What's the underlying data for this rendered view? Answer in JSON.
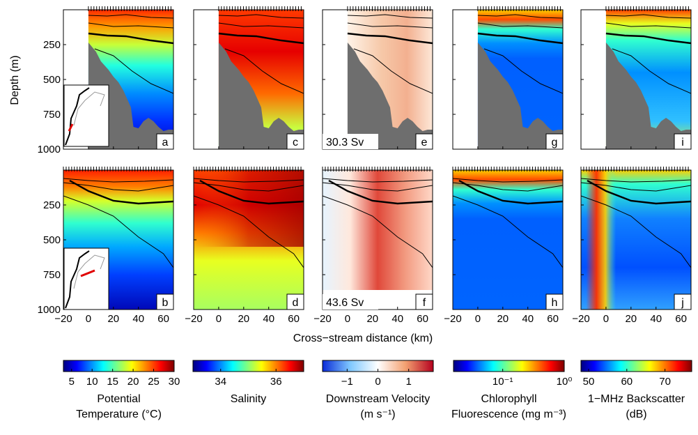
{
  "chart_data": {
    "type": "heatmap",
    "layout_note": "2 rows x 5 columns of depth vs cross-stream distance sections",
    "ylabel": "Depth (m)",
    "xlabel": "Cross−stream distance (km)",
    "xlim": [
      -20,
      68
    ],
    "ylim": [
      1000,
      0
    ],
    "x_ticks": [
      "−20",
      "0",
      "20",
      "40",
      "60"
    ],
    "y_ticks": [
      "250",
      "500",
      "750",
      "1000"
    ],
    "panels": [
      {
        "id": "a",
        "row": 1,
        "variable": "Potential Temperature",
        "inset_map": true
      },
      {
        "id": "c",
        "row": 1,
        "variable": "Salinity"
      },
      {
        "id": "e",
        "row": 1,
        "variable": "Downstream Velocity",
        "transport": "30.3 Sv"
      },
      {
        "id": "g",
        "row": 1,
        "variable": "Chlorophyll Fluorescence"
      },
      {
        "id": "i",
        "row": 1,
        "variable": "1-MHz Backscatter"
      },
      {
        "id": "b",
        "row": 2,
        "variable": "Potential Temperature",
        "inset_map": true
      },
      {
        "id": "d",
        "row": 2,
        "variable": "Salinity"
      },
      {
        "id": "f",
        "row": 2,
        "variable": "Downstream Velocity",
        "transport": "43.6 Sv"
      },
      {
        "id": "h",
        "row": 2,
        "variable": "Chlorophyll Fluorescence"
      },
      {
        "id": "j",
        "row": 2,
        "variable": "1-MHz Backscatter"
      }
    ],
    "colorbars": [
      {
        "label_lines": [
          "Potential",
          "Temperature (°C)"
        ],
        "range": [
          3,
          30
        ],
        "ticks": [
          {
            "v": 5,
            "t": "5"
          },
          {
            "v": 10,
            "t": "10"
          },
          {
            "v": 15,
            "t": "15"
          },
          {
            "v": 20,
            "t": "20"
          },
          {
            "v": 25,
            "t": "25"
          },
          {
            "v": 30,
            "t": "30"
          }
        ],
        "cmap": "jet"
      },
      {
        "label_lines": [
          "Salinity"
        ],
        "range": [
          33,
          37
        ],
        "ticks": [
          {
            "v": 34,
            "t": "34"
          },
          {
            "v": 36,
            "t": "36"
          }
        ],
        "cmap": "jet"
      },
      {
        "label_lines": [
          "Downstream Velocity",
          "(m s⁻¹)"
        ],
        "range": [
          -1.8,
          1.8
        ],
        "ticks": [
          {
            "v": -1,
            "t": "−1"
          },
          {
            "v": 0,
            "t": "0"
          },
          {
            "v": 1,
            "t": "1"
          }
        ],
        "cmap": "diverging"
      },
      {
        "label_lines": [
          "Chlorophyll",
          "Fluorescence (mg m⁻³)"
        ],
        "range": [
          -1.8,
          0
        ],
        "ticks": [
          {
            "v": -1,
            "t": "10⁻¹"
          },
          {
            "v": 0,
            "t": "10⁰"
          }
        ],
        "cmap": "jet",
        "scale": "log"
      },
      {
        "label_lines": [
          "1−MHz Backscatter",
          "(dB)"
        ],
        "range": [
          48,
          77
        ],
        "ticks": [
          {
            "v": 50,
            "t": "50"
          },
          {
            "v": 60,
            "t": "60"
          },
          {
            "v": 70,
            "t": "70"
          }
        ],
        "cmap": "jet"
      }
    ],
    "grid": false,
    "legend": "colorbars below panels"
  }
}
